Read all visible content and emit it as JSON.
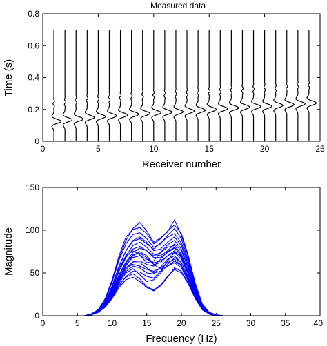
{
  "chart_data": [
    {
      "type": "line",
      "title": "Measured data",
      "xlabel": "Receiver number",
      "ylabel": "Time (s)",
      "xlim": [
        0,
        25
      ],
      "ylim": [
        0,
        0.8
      ],
      "xticks": [
        0,
        5,
        10,
        15,
        20,
        25
      ],
      "yticks": [
        0,
        0.2,
        0.4,
        0.6,
        0.8
      ],
      "xtick_labels": [
        "0",
        "5",
        "10",
        "15",
        "20",
        "25"
      ],
      "ytick_labels": [
        "0",
        "0.2",
        "0.4",
        "0.6",
        "0.8"
      ],
      "trace_color": "#000000",
      "trace_time_top": 0.7,
      "receivers": [
        1,
        2,
        3,
        4,
        5,
        6,
        7,
        8,
        9,
        10,
        11,
        12,
        13,
        14,
        15,
        16,
        17,
        18,
        19,
        20,
        21,
        22,
        23,
        24
      ],
      "arrival_times": [
        0.125,
        0.135,
        0.14,
        0.15,
        0.155,
        0.16,
        0.165,
        0.17,
        0.175,
        0.18,
        0.183,
        0.185,
        0.19,
        0.195,
        0.2,
        0.205,
        0.21,
        0.215,
        0.218,
        0.22,
        0.225,
        0.23,
        0.235,
        0.24
      ]
    },
    {
      "type": "line",
      "title": "",
      "xlabel": "Frequency (Hz)",
      "ylabel": "Magnitude",
      "xlim": [
        0,
        40
      ],
      "ylim": [
        0,
        150
      ],
      "xticks": [
        0,
        5,
        10,
        15,
        20,
        25,
        30,
        35,
        40
      ],
      "yticks": [
        0,
        50,
        100,
        150
      ],
      "xtick_labels": [
        "0",
        "5",
        "10",
        "15",
        "20",
        "25",
        "30",
        "35",
        "40"
      ],
      "ytick_labels": [
        "0",
        "50",
        "100",
        "150"
      ],
      "line_color": "#0000ff",
      "x": [
        1,
        2,
        3,
        4,
        5,
        6,
        7,
        8,
        9,
        10,
        11,
        12,
        13,
        14,
        15,
        16,
        17,
        18,
        19,
        20,
        21,
        22,
        23,
        24,
        25,
        26,
        27,
        28,
        29,
        30,
        31,
        32,
        33,
        34,
        35,
        36,
        37,
        38,
        39,
        40
      ],
      "series": [
        {
          "values": [
            0,
            0,
            0,
            0,
            0,
            0,
            2,
            7,
            20,
            42,
            70,
            92,
            101,
            103,
            96,
            84,
            90,
            99,
            106,
            96,
            70,
            38,
            14,
            4,
            1,
            0,
            0,
            0,
            0,
            0,
            0,
            0,
            0,
            0,
            0,
            0,
            0,
            0,
            0,
            0
          ]
        },
        {
          "values": [
            0,
            0,
            0,
            0,
            0,
            0,
            2,
            7,
            19,
            40,
            67,
            88,
            102,
            109,
            99,
            86,
            91,
            98,
            112,
            94,
            68,
            36,
            13,
            4,
            1,
            0,
            0,
            0,
            0,
            0,
            0,
            0,
            0,
            0,
            0,
            0,
            0,
            0,
            0,
            0
          ]
        },
        {
          "values": [
            0,
            0,
            0,
            0,
            0,
            0,
            2,
            6,
            17,
            35,
            58,
            76,
            87,
            90,
            84,
            78,
            85,
            92,
            96,
            85,
            62,
            34,
            12,
            3,
            1,
            0,
            0,
            0,
            0,
            0,
            0,
            0,
            0,
            0,
            0,
            0,
            0,
            0,
            0,
            0
          ]
        },
        {
          "values": [
            0,
            0,
            0,
            0,
            0,
            0,
            2,
            6,
            16,
            33,
            55,
            70,
            76,
            71,
            62,
            64,
            74,
            83,
            88,
            78,
            56,
            30,
            11,
            3,
            1,
            0,
            0,
            0,
            0,
            0,
            0,
            0,
            0,
            0,
            0,
            0,
            0,
            0,
            0,
            0
          ]
        },
        {
          "values": [
            0,
            0,
            0,
            0,
            0,
            0,
            1,
            5,
            14,
            29,
            48,
            63,
            74,
            79,
            76,
            70,
            74,
            80,
            82,
            72,
            52,
            28,
            10,
            3,
            1,
            0,
            0,
            0,
            0,
            0,
            0,
            0,
            0,
            0,
            0,
            0,
            0,
            0,
            0,
            0
          ]
        },
        {
          "values": [
            0,
            0,
            0,
            0,
            0,
            0,
            1,
            5,
            13,
            26,
            43,
            56,
            63,
            64,
            60,
            58,
            66,
            75,
            80,
            70,
            50,
            27,
            10,
            3,
            0,
            0,
            0,
            0,
            0,
            0,
            0,
            0,
            0,
            0,
            0,
            0,
            0,
            0,
            0,
            0
          ]
        },
        {
          "values": [
            0,
            0,
            0,
            0,
            0,
            0,
            1,
            4,
            12,
            24,
            40,
            52,
            58,
            56,
            50,
            49,
            57,
            66,
            70,
            62,
            45,
            24,
            9,
            2,
            0,
            0,
            0,
            0,
            0,
            0,
            0,
            0,
            0,
            0,
            0,
            0,
            0,
            0,
            0,
            0
          ]
        },
        {
          "values": [
            0,
            0,
            0,
            0,
            0,
            0,
            1,
            4,
            11,
            22,
            36,
            45,
            49,
            43,
            34,
            30,
            36,
            46,
            54,
            50,
            37,
            20,
            7,
            2,
            0,
            0,
            0,
            0,
            0,
            0,
            0,
            0,
            0,
            0,
            0,
            0,
            0,
            0,
            0,
            0
          ]
        },
        {
          "values": [
            0,
            0,
            0,
            0,
            0,
            0,
            1,
            4,
            12,
            25,
            42,
            58,
            70,
            75,
            70,
            60,
            55,
            58,
            62,
            56,
            40,
            22,
            8,
            2,
            0,
            0,
            0,
            0,
            0,
            0,
            0,
            0,
            0,
            0,
            0,
            0,
            0,
            0,
            0,
            0
          ]
        },
        {
          "values": [
            0,
            0,
            0,
            0,
            0,
            0,
            1,
            4,
            11,
            23,
            38,
            50,
            55,
            48,
            40,
            42,
            50,
            60,
            68,
            62,
            45,
            24,
            9,
            2,
            0,
            0,
            0,
            0,
            0,
            0,
            0,
            0,
            0,
            0,
            0,
            0,
            0,
            0,
            0,
            0
          ]
        },
        {
          "values": [
            0,
            0,
            0,
            0,
            0,
            0,
            1,
            5,
            14,
            30,
            52,
            70,
            82,
            86,
            80,
            72,
            70,
            76,
            84,
            76,
            55,
            30,
            11,
            3,
            1,
            0,
            0,
            0,
            0,
            0,
            0,
            0,
            0,
            0,
            0,
            0,
            0,
            0,
            0,
            0
          ]
        },
        {
          "values": [
            0,
            0,
            0,
            0,
            0,
            0,
            1,
            5,
            13,
            27,
            45,
            60,
            68,
            70,
            66,
            62,
            64,
            70,
            76,
            68,
            49,
            27,
            10,
            3,
            1,
            0,
            0,
            0,
            0,
            0,
            0,
            0,
            0,
            0,
            0,
            0,
            0,
            0,
            0,
            0
          ]
        },
        {
          "values": [
            0,
            0,
            0,
            0,
            0,
            0,
            1,
            4,
            10,
            20,
            33,
            42,
            45,
            40,
            33,
            29,
            35,
            45,
            56,
            52,
            38,
            21,
            8,
            2,
            0,
            0,
            0,
            0,
            0,
            0,
            0,
            0,
            0,
            0,
            0,
            0,
            0,
            0,
            0,
            0
          ]
        },
        {
          "values": [
            0,
            0,
            0,
            0,
            0,
            0,
            2,
            6,
            16,
            34,
            57,
            76,
            88,
            92,
            86,
            76,
            78,
            86,
            92,
            82,
            59,
            32,
            12,
            3,
            1,
            0,
            0,
            0,
            0,
            0,
            0,
            0,
            0,
            0,
            0,
            0,
            0,
            0,
            0,
            0
          ]
        },
        {
          "values": [
            0,
            0,
            0,
            0,
            0,
            0,
            2,
            6,
            15,
            31,
            52,
            68,
            78,
            81,
            76,
            68,
            68,
            74,
            79,
            71,
            51,
            28,
            10,
            3,
            1,
            0,
            0,
            0,
            0,
            0,
            0,
            0,
            0,
            0,
            0,
            0,
            0,
            0,
            0,
            0
          ]
        },
        {
          "values": [
            0,
            0,
            0,
            0,
            0,
            0,
            1,
            5,
            13,
            28,
            47,
            62,
            71,
            73,
            68,
            60,
            62,
            70,
            74,
            66,
            48,
            26,
            9,
            3,
            0,
            0,
            0,
            0,
            0,
            0,
            0,
            0,
            0,
            0,
            0,
            0,
            0,
            0,
            0,
            0
          ]
        },
        {
          "values": [
            0,
            0,
            0,
            0,
            0,
            0,
            1,
            4,
            10,
            21,
            35,
            46,
            52,
            51,
            46,
            44,
            52,
            64,
            74,
            70,
            52,
            28,
            10,
            3,
            1,
            0,
            0,
            0,
            0,
            0,
            0,
            0,
            0,
            0,
            0,
            0,
            0,
            0,
            0,
            0
          ]
        },
        {
          "values": [
            0,
            0,
            0,
            0,
            0,
            0,
            2,
            7,
            19,
            39,
            65,
            84,
            95,
            97,
            90,
            80,
            84,
            94,
            102,
            90,
            64,
            34,
            13,
            4,
            1,
            0,
            0,
            0,
            0,
            0,
            0,
            0,
            0,
            0,
            0,
            0,
            0,
            0,
            0,
            0
          ]
        },
        {
          "values": [
            0,
            0,
            0,
            0,
            0,
            0,
            1,
            5,
            13,
            27,
            44,
            56,
            60,
            58,
            54,
            52,
            56,
            62,
            66,
            59,
            43,
            23,
            8,
            2,
            0,
            0,
            0,
            0,
            0,
            0,
            0,
            0,
            0,
            0,
            0,
            0,
            0,
            0,
            0,
            0
          ]
        },
        {
          "values": [
            0,
            0,
            0,
            0,
            0,
            0,
            1,
            4,
            12,
            25,
            41,
            54,
            62,
            62,
            56,
            50,
            52,
            58,
            64,
            58,
            42,
            23,
            8,
            2,
            0,
            0,
            0,
            0,
            0,
            0,
            0,
            0,
            0,
            0,
            0,
            0,
            0,
            0,
            0,
            0
          ]
        }
      ]
    }
  ]
}
